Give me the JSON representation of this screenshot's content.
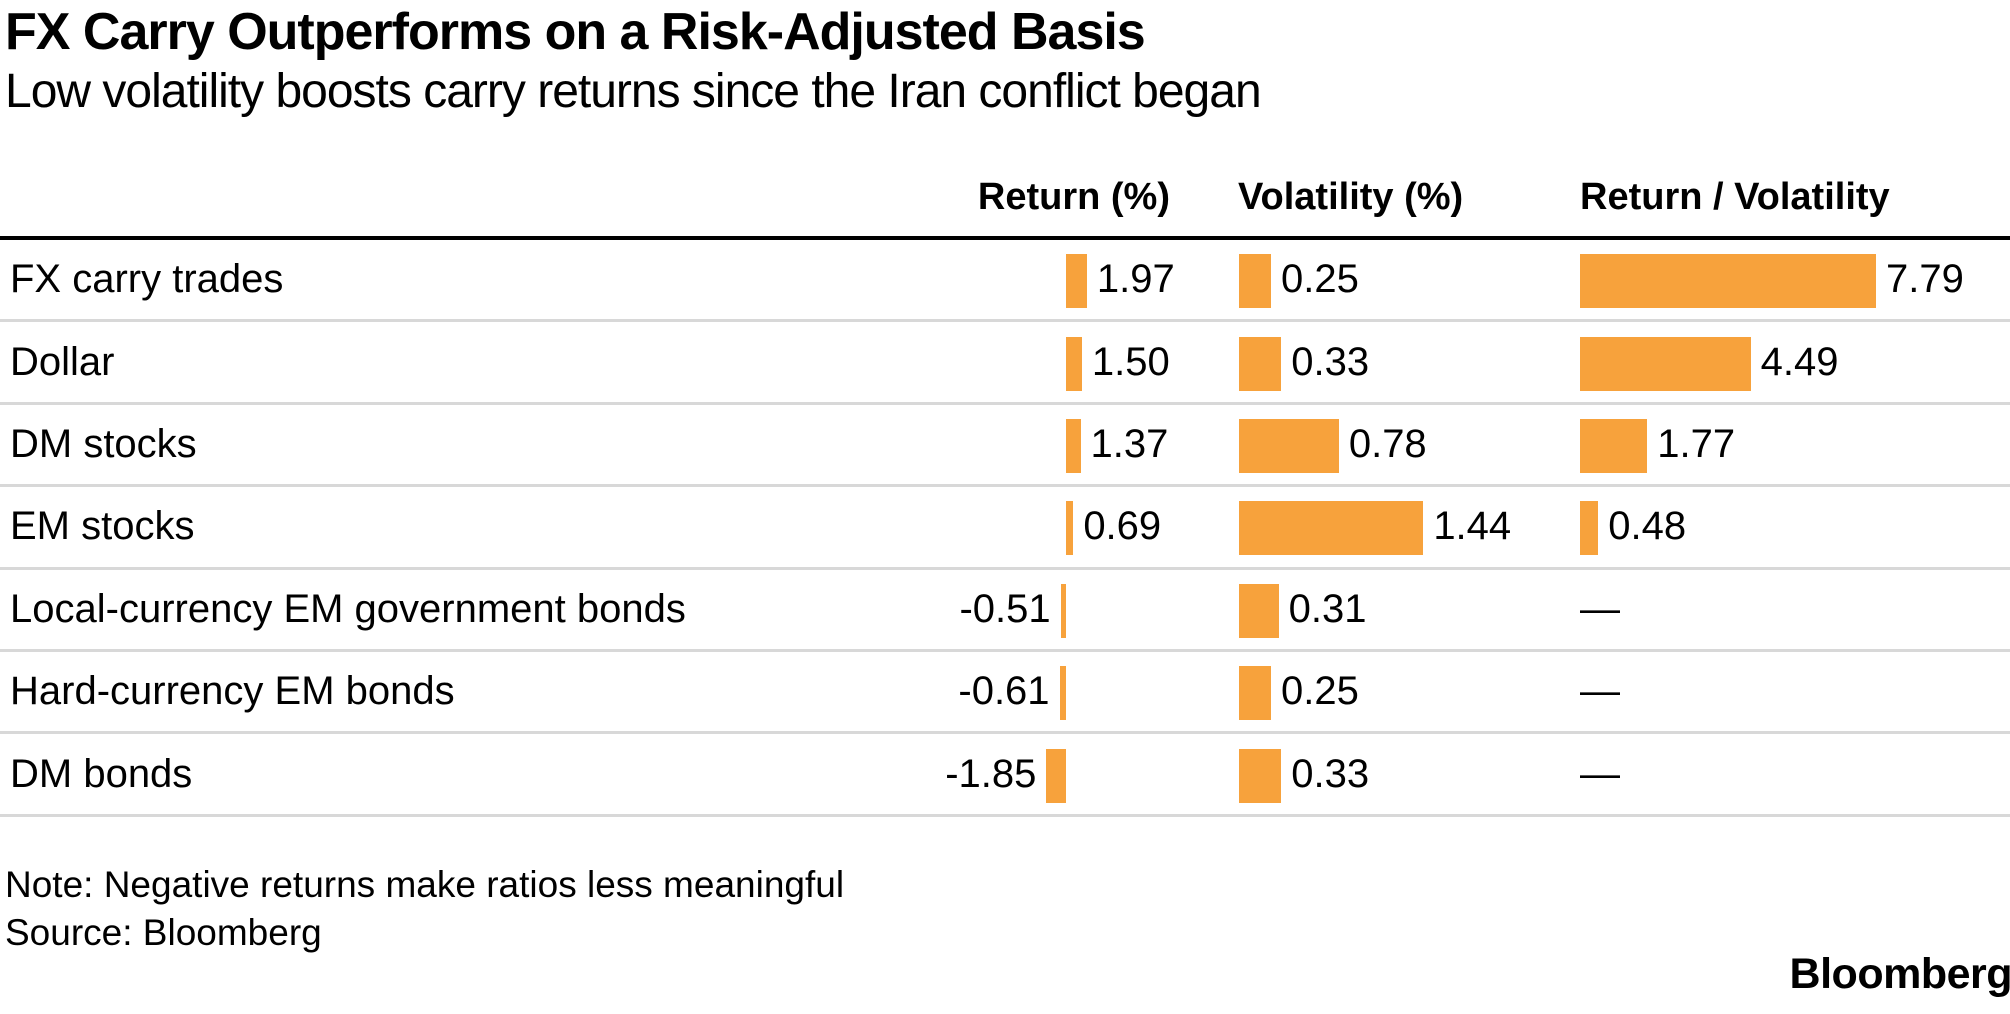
{
  "title": "FX Carry Outperforms on a Risk-Adjusted Basis",
  "subtitle": "Low volatility boosts carry returns since the Iran conflict began",
  "columns": [
    {
      "label": "Return (%)"
    },
    {
      "label": "Volatility (%)"
    },
    {
      "label": "Return / Volatility"
    }
  ],
  "chart_data": {
    "type": "bar",
    "orientation": "horizontal",
    "categories": [
      "FX carry trades",
      "Dollar",
      "DM stocks",
      "EM stocks",
      "Local-currency EM government bonds",
      "Hard-currency EM bonds",
      "DM bonds"
    ],
    "series": [
      {
        "name": "Return (%)",
        "values": [
          1.97,
          1.5,
          1.37,
          0.69,
          -0.51,
          -0.61,
          -1.85
        ]
      },
      {
        "name": "Volatility (%)",
        "values": [
          0.25,
          0.33,
          0.78,
          1.44,
          0.31,
          0.25,
          0.33
        ]
      },
      {
        "name": "Return / Volatility",
        "values": [
          7.79,
          4.49,
          1.77,
          0.48,
          null,
          null,
          null
        ]
      }
    ],
    "value_format": "0.00",
    "missing_value_symbol": "—",
    "bar_color": "#F7A23C",
    "grid": "row-dividers-only",
    "legend": "none"
  },
  "note": "Note: Negative returns make ratios less meaningful",
  "source": "Source: Bloomberg",
  "brand": "Bloomberg",
  "colors": {
    "bar": "#F7A23C",
    "divider": "#D8D8D8",
    "rule": "#000000",
    "text": "#000000",
    "background": "#FFFFFF"
  }
}
